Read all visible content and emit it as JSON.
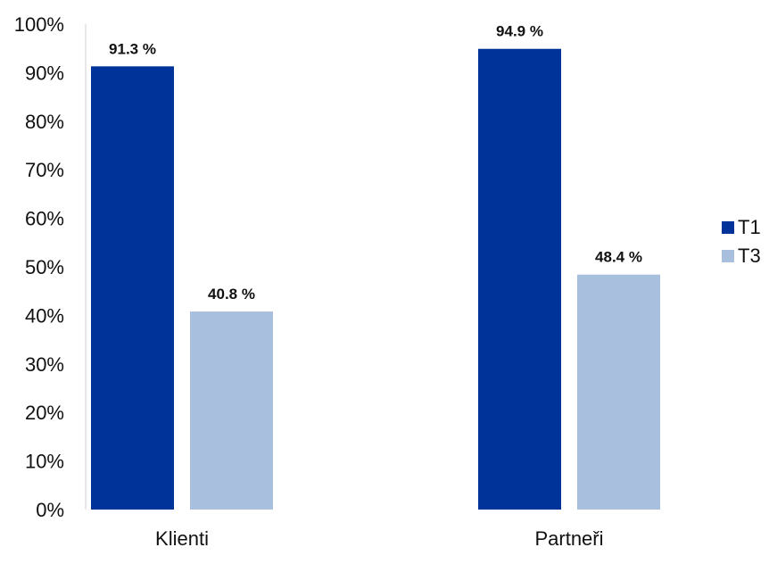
{
  "chart_data": {
    "type": "bar",
    "categories": [
      "Klienti",
      "Partneři"
    ],
    "series": [
      {
        "name": "T1",
        "color": "#003399",
        "values": [
          91.3,
          94.9
        ],
        "labels": [
          "91.3 %",
          "94.9 %"
        ]
      },
      {
        "name": "T3",
        "color": "#A8BFDE",
        "values": [
          40.8,
          48.4
        ],
        "labels": [
          "40.8 %",
          "48.4 %"
        ]
      }
    ],
    "y_ticks": [
      "0%",
      "10%",
      "20%",
      "30%",
      "40%",
      "50%",
      "60%",
      "70%",
      "80%",
      "90%",
      "100%"
    ],
    "ylim": [
      0,
      100
    ],
    "grid": false,
    "legend_position": "right",
    "title": "",
    "xlabel": "",
    "ylabel": ""
  }
}
